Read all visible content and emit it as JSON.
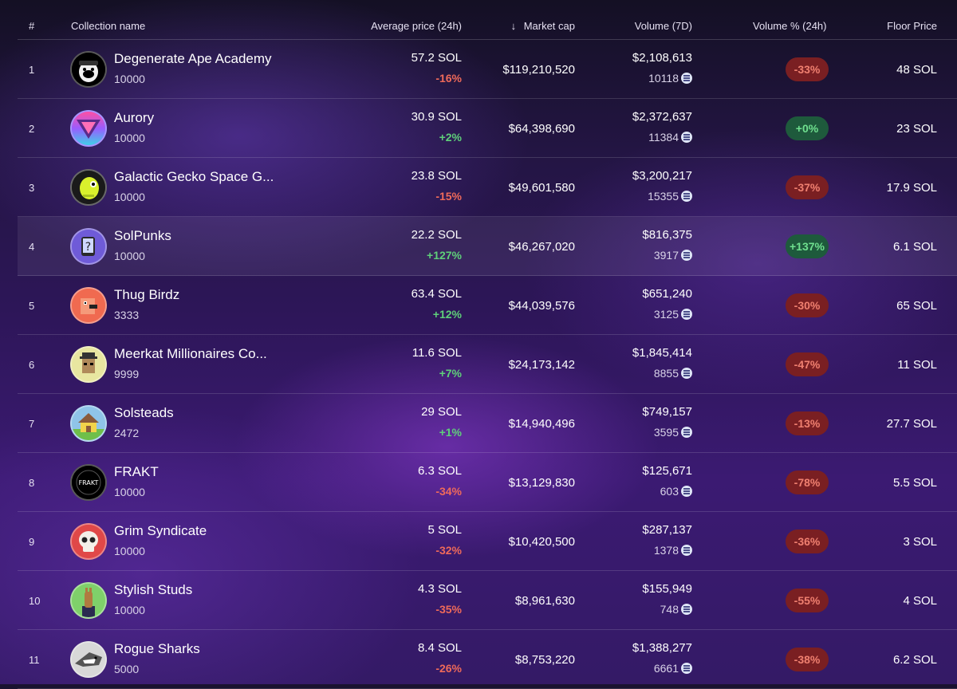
{
  "header": {
    "rank": "#",
    "name": "Collection name",
    "avg_price": "Average price (24h)",
    "sort_arrow": "↓",
    "market_cap": "Market cap",
    "volume": "Volume (7D)",
    "volume_pct": "Volume % (24h)",
    "floor": "Floor Price"
  },
  "rows": [
    {
      "rank": "1",
      "name": "Degenerate Ape Academy",
      "supply": "10000",
      "avg": "57.2 SOL",
      "change": "-16%",
      "change_dir": "neg",
      "mcap": "$119,210,520",
      "volume": "$2,108,613",
      "sales": "10118",
      "vol_pct": "-33%",
      "vol_dir": "neg",
      "floor": "48 SOL",
      "icon": "ape-avatar-icon",
      "color": "#000000"
    },
    {
      "rank": "2",
      "name": "Aurory",
      "supply": "10000",
      "avg": "30.9 SOL",
      "change": "+2%",
      "change_dir": "pos",
      "mcap": "$64,398,690",
      "volume": "$2,372,637",
      "sales": "11384",
      "vol_pct": "+0%",
      "vol_dir": "pos",
      "floor": "23 SOL",
      "icon": "aurory-logo-icon",
      "color": "#7a5cff"
    },
    {
      "rank": "3",
      "name": "Galactic Gecko Space G...",
      "supply": "10000",
      "avg": "23.8 SOL",
      "change": "-15%",
      "change_dir": "neg",
      "mcap": "$49,601,580",
      "volume": "$3,200,217",
      "sales": "15355",
      "vol_pct": "-37%",
      "vol_dir": "neg",
      "floor": "17.9 SOL",
      "icon": "gecko-avatar-icon",
      "color": "#1a1a1a"
    },
    {
      "rank": "4",
      "name": "SolPunks",
      "supply": "10000",
      "avg": "22.2 SOL",
      "change": "+127%",
      "change_dir": "pos",
      "mcap": "$46,267,020",
      "volume": "$816,375",
      "sales": "3917",
      "vol_pct": "+137%",
      "vol_dir": "pos",
      "floor": "6.1 SOL",
      "icon": "punk-avatar-icon",
      "color": "#6f5bd8"
    },
    {
      "rank": "5",
      "name": "Thug Birdz",
      "supply": "3333",
      "avg": "63.4 SOL",
      "change": "+12%",
      "change_dir": "pos",
      "mcap": "$44,039,576",
      "volume": "$651,240",
      "sales": "3125",
      "vol_pct": "-30%",
      "vol_dir": "neg",
      "floor": "65 SOL",
      "icon": "bird-avatar-icon",
      "color": "#f06a50"
    },
    {
      "rank": "6",
      "name": "Meerkat Millionaires Co...",
      "supply": "9999",
      "avg": "11.6 SOL",
      "change": "+7%",
      "change_dir": "pos",
      "mcap": "$24,173,142",
      "volume": "$1,845,414",
      "sales": "8855",
      "vol_pct": "-47%",
      "vol_dir": "neg",
      "floor": "11 SOL",
      "icon": "meerkat-avatar-icon",
      "color": "#e8e6a0"
    },
    {
      "rank": "7",
      "name": "Solsteads",
      "supply": "2472",
      "avg": "29 SOL",
      "change": "+1%",
      "change_dir": "pos",
      "mcap": "$14,940,496",
      "volume": "$749,157",
      "sales": "3595",
      "vol_pct": "-13%",
      "vol_dir": "neg",
      "floor": "27.7 SOL",
      "icon": "house-avatar-icon",
      "color": "#8fc4e8"
    },
    {
      "rank": "8",
      "name": "FRAKT",
      "supply": "10000",
      "avg": "6.3 SOL",
      "change": "-34%",
      "change_dir": "neg",
      "mcap": "$13,129,830",
      "volume": "$125,671",
      "sales": "603",
      "vol_pct": "-78%",
      "vol_dir": "neg",
      "floor": "5.5 SOL",
      "icon": "frakt-logo-icon",
      "color": "#000000",
      "logo_text": "FRAKT"
    },
    {
      "rank": "9",
      "name": "Grim Syndicate",
      "supply": "10000",
      "avg": "5 SOL",
      "change": "-32%",
      "change_dir": "neg",
      "mcap": "$10,420,500",
      "volume": "$287,137",
      "sales": "1378",
      "vol_pct": "-36%",
      "vol_dir": "neg",
      "floor": "3 SOL",
      "icon": "skull-avatar-icon",
      "color": "#e04848"
    },
    {
      "rank": "10",
      "name": "Stylish Studs",
      "supply": "10000",
      "avg": "4.3 SOL",
      "change": "-35%",
      "change_dir": "neg",
      "mcap": "$8,961,630",
      "volume": "$155,949",
      "sales": "748",
      "vol_pct": "-55%",
      "vol_dir": "neg",
      "floor": "4 SOL",
      "icon": "horse-avatar-icon",
      "color": "#7fd06a"
    },
    {
      "rank": "11",
      "name": "Rogue Sharks",
      "supply": "5000",
      "avg": "8.4 SOL",
      "change": "-26%",
      "change_dir": "neg",
      "mcap": "$8,753,220",
      "volume": "$1,388,277",
      "sales": "6661",
      "vol_pct": "-38%",
      "vol_dir": "neg",
      "floor": "6.2 SOL",
      "icon": "shark-avatar-icon",
      "color": "#d8d8d8"
    }
  ],
  "highlighted_row": 4
}
